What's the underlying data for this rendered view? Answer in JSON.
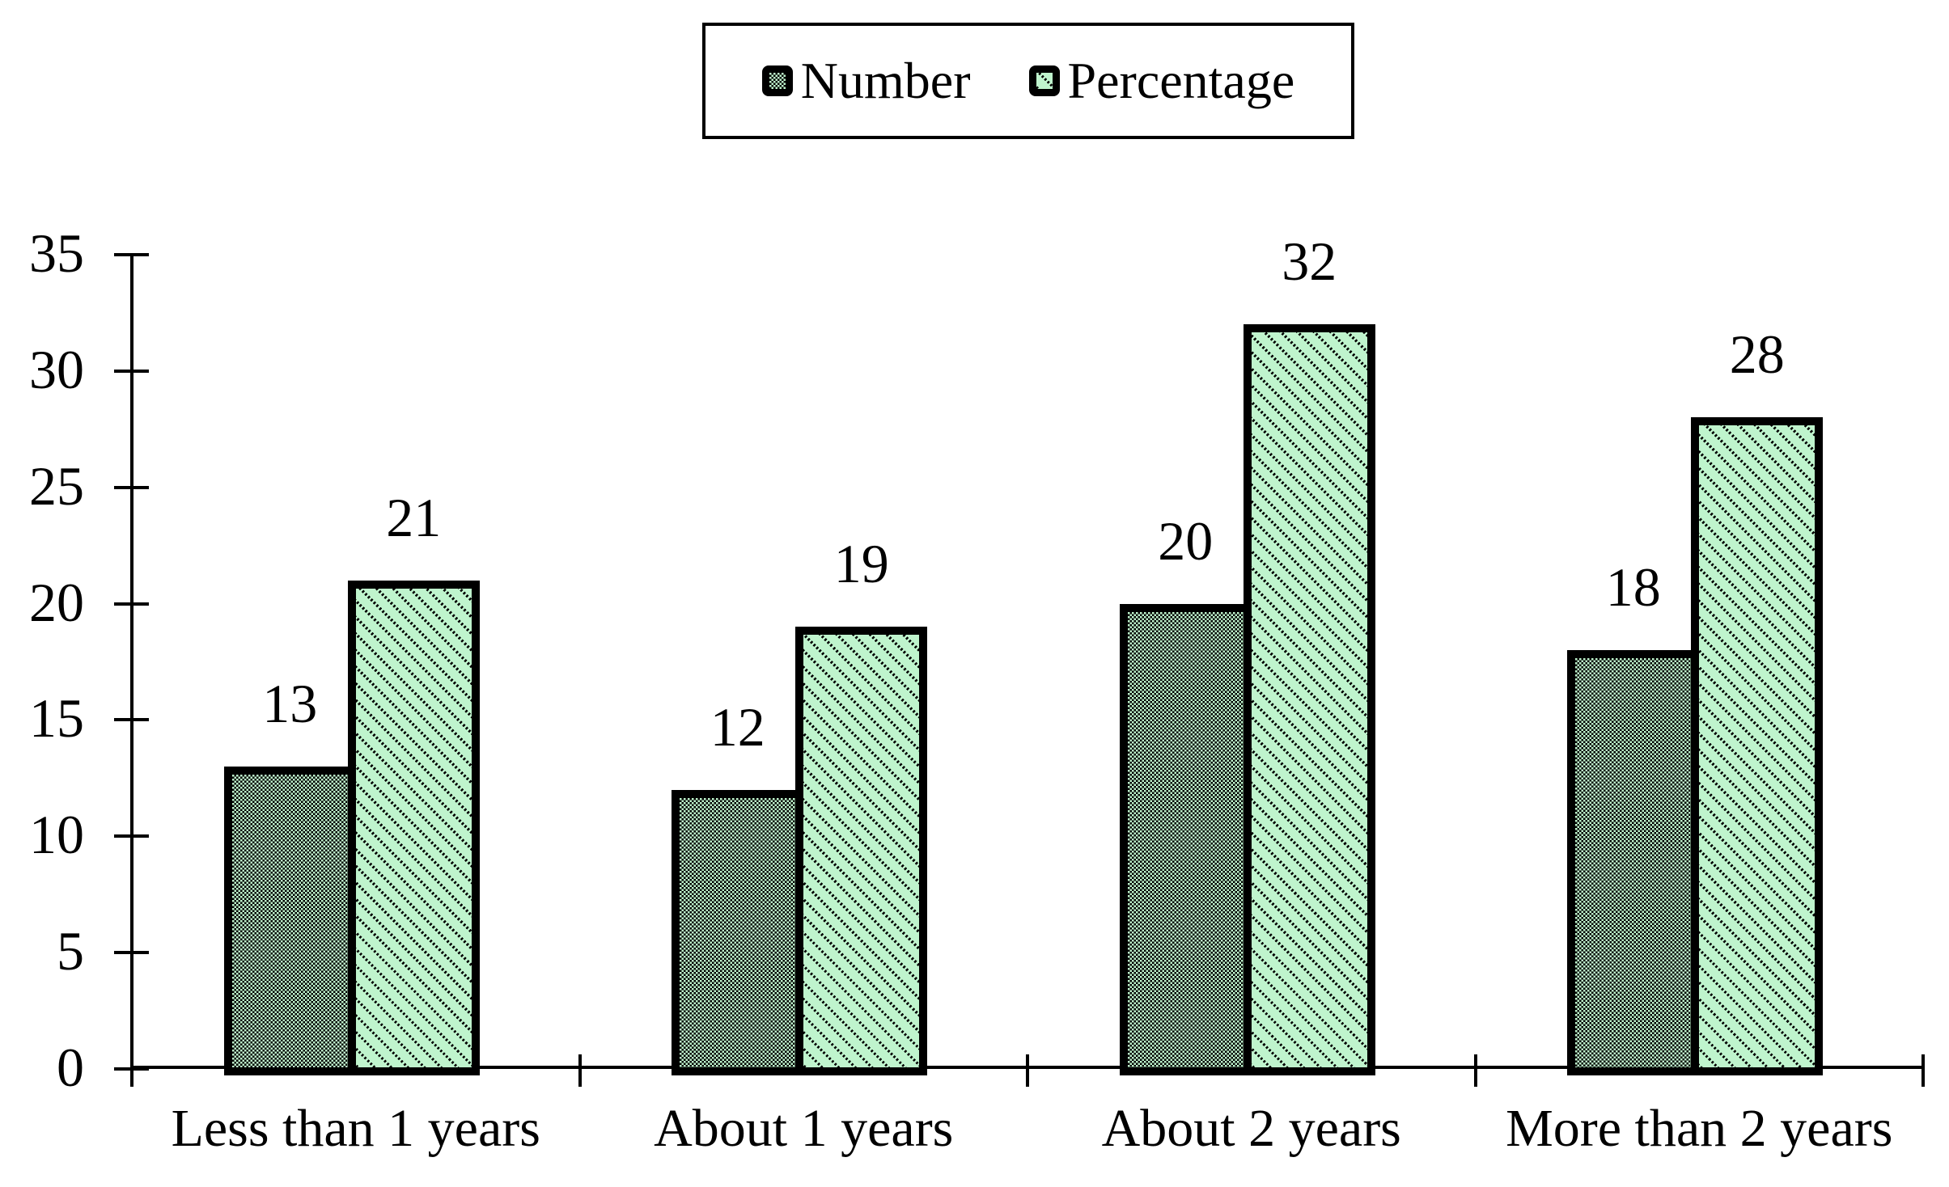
{
  "legend": {
    "items": [
      "Number",
      "Percentage"
    ]
  },
  "chart_data": {
    "type": "bar",
    "title": "",
    "xlabel": "",
    "ylabel": "",
    "categories": [
      "Less than 1 years",
      "About 1 years",
      "About 2 years",
      "More than 2 years"
    ],
    "series": [
      {
        "name": "Number",
        "values": [
          13,
          12,
          20,
          18
        ],
        "pattern": "checker"
      },
      {
        "name": "Percentage",
        "values": [
          21,
          19,
          32,
          28
        ],
        "pattern": "diagonal"
      }
    ],
    "ylim": [
      0,
      35
    ],
    "yticks": [
      0,
      5,
      10,
      15,
      20,
      25,
      30,
      35
    ],
    "grid": false,
    "bar_value_labels": true,
    "legend_position": "top-center",
    "colors": {
      "fill": "#bff4cd",
      "pattern_ink": "#000000",
      "axis": "#000000",
      "text": "#000000",
      "background": "#ffffff"
    }
  }
}
